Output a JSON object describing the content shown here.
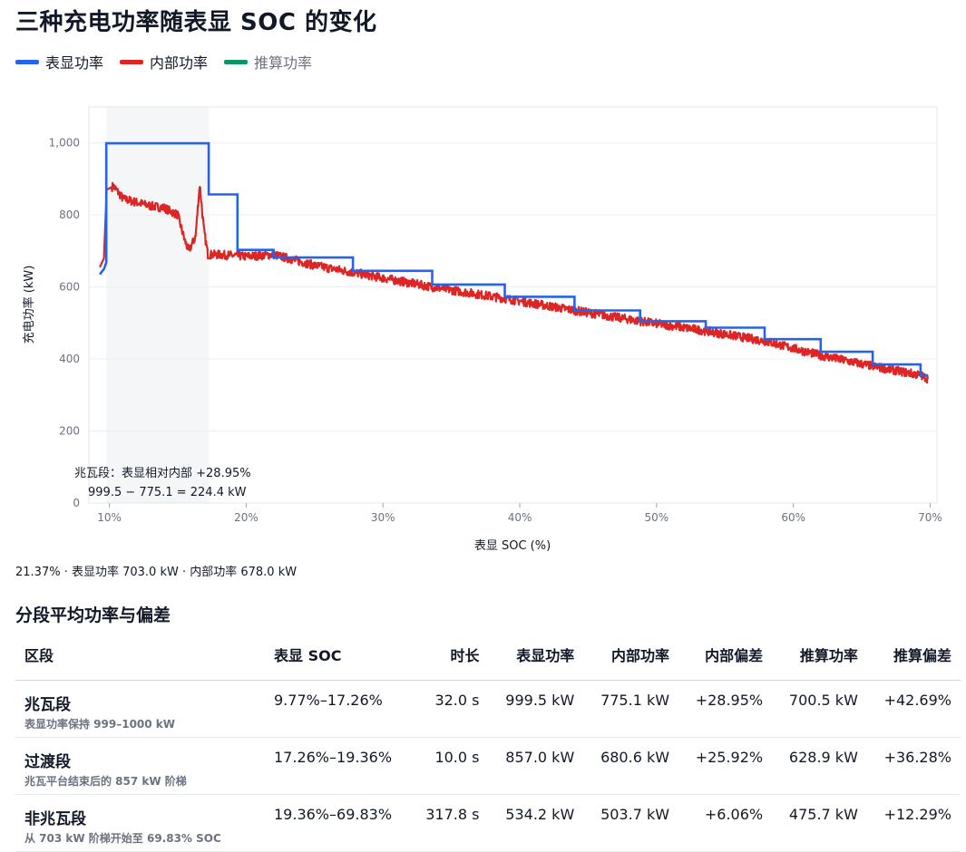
{
  "title": "三种充电功率随表显 SOC 的变化",
  "legend": [
    {
      "label": "表显功率",
      "color": "#2563eb"
    },
    {
      "label": "内部功率",
      "color": "#dc2626"
    },
    {
      "label": "推算功率",
      "color": "#059669"
    }
  ],
  "chart_data": {
    "type": "line",
    "xlabel": "表显 SOC (%)",
    "ylabel": "充电功率 (kW)",
    "xlim": [
      8.5,
      70.5
    ],
    "ylim": [
      0,
      1100
    ],
    "xticks": [
      10,
      20,
      30,
      40,
      50,
      60,
      70
    ],
    "xtick_labels": [
      "10%",
      "20%",
      "30%",
      "40%",
      "50%",
      "60%",
      "70%"
    ],
    "yticks": [
      0,
      200,
      400,
      600,
      800,
      1000
    ],
    "ytick_labels": [
      "0",
      "200",
      "400",
      "600",
      "800",
      "1,000"
    ],
    "grid": true,
    "highlight_band": [
      9.77,
      17.26
    ],
    "series": [
      {
        "name": "表显功率",
        "color": "#2563eb",
        "step": true,
        "points": [
          [
            9.3,
            635
          ],
          [
            9.6,
            650
          ],
          [
            9.77,
            668
          ],
          [
            9.77,
            999
          ],
          [
            17.26,
            999
          ],
          [
            17.26,
            857
          ],
          [
            19.36,
            857
          ],
          [
            19.36,
            703
          ],
          [
            22.0,
            703
          ],
          [
            22.0,
            682
          ],
          [
            27.8,
            682
          ],
          [
            27.8,
            645
          ],
          [
            33.6,
            645
          ],
          [
            33.6,
            607
          ],
          [
            38.9,
            607
          ],
          [
            38.9,
            573
          ],
          [
            44.0,
            573
          ],
          [
            44.0,
            535
          ],
          [
            48.8,
            535
          ],
          [
            48.8,
            505
          ],
          [
            53.6,
            505
          ],
          [
            53.6,
            487
          ],
          [
            57.9,
            487
          ],
          [
            57.9,
            455
          ],
          [
            62.0,
            455
          ],
          [
            62.0,
            420
          ],
          [
            65.8,
            420
          ],
          [
            65.8,
            385
          ],
          [
            69.3,
            385
          ],
          [
            69.3,
            355
          ],
          [
            69.83,
            355
          ]
        ]
      },
      {
        "name": "内部功率",
        "color": "#dc2626",
        "noise": 12,
        "points": [
          [
            9.3,
            655
          ],
          [
            9.6,
            680
          ],
          [
            9.8,
            870
          ],
          [
            10.3,
            880
          ],
          [
            11.0,
            845
          ],
          [
            12.0,
            835
          ],
          [
            13.0,
            825
          ],
          [
            14.0,
            820
          ],
          [
            15.0,
            800
          ],
          [
            15.5,
            730
          ],
          [
            15.8,
            700
          ],
          [
            16.3,
            740
          ],
          [
            16.6,
            885
          ],
          [
            16.9,
            760
          ],
          [
            17.2,
            690
          ],
          [
            18.0,
            690
          ],
          [
            20.0,
            685
          ],
          [
            22.0,
            690
          ],
          [
            25.0,
            660
          ],
          [
            30.0,
            625
          ],
          [
            33.6,
            600
          ],
          [
            38.9,
            568
          ],
          [
            44.0,
            535
          ],
          [
            48.8,
            505
          ],
          [
            53.6,
            478
          ],
          [
            57.9,
            450
          ],
          [
            62.0,
            410
          ],
          [
            65.8,
            380
          ],
          [
            69.3,
            355
          ],
          [
            69.83,
            345
          ]
        ]
      }
    ],
    "annotation": {
      "line1": "兆瓦段：表显相对内部 +28.95%",
      "line2": "999.5 − 775.1 = 224.4 kW"
    }
  },
  "readout": "21.37% · 表显功率 703.0 kW · 内部功率 678.0 kW",
  "section_title": "分段平均功率与偏差",
  "table": {
    "headers": [
      "区段",
      "表显 SOC",
      "时长",
      "表显功率",
      "内部功率",
      "内部偏差",
      "推算功率",
      "推算偏差"
    ],
    "rows": [
      {
        "name": "兆瓦段",
        "desc": "表显功率保持 999–1000 kW",
        "soc": "9.77%–17.26%",
        "duration": "32.0 s",
        "displayed": "999.5 kW",
        "internal": "775.1 kW",
        "internal_dev": "+28.95%",
        "estimated": "700.5 kW",
        "estimated_dev": "+42.69%"
      },
      {
        "name": "过渡段",
        "desc": "兆瓦平台结束后的 857 kW 阶梯",
        "soc": "17.26%–19.36%",
        "duration": "10.0 s",
        "displayed": "857.0 kW",
        "internal": "680.6 kW",
        "internal_dev": "+25.92%",
        "estimated": "628.9 kW",
        "estimated_dev": "+36.28%"
      },
      {
        "name": "非兆瓦段",
        "desc": "从 703 kW 阶梯开始至 69.83% SOC",
        "soc": "19.36%–69.83%",
        "duration": "317.8 s",
        "displayed": "534.2 kW",
        "internal": "503.7 kW",
        "internal_dev": "+6.06%",
        "estimated": "475.7 kW",
        "estimated_dev": "+12.29%"
      }
    ]
  }
}
